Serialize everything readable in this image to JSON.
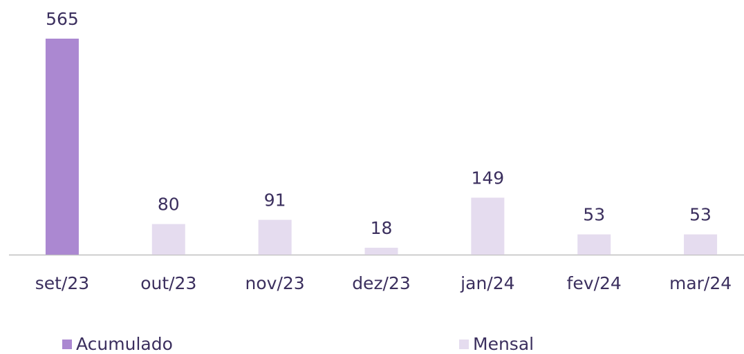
{
  "chart_data": {
    "type": "bar",
    "categories": [
      "set/23",
      "out/23",
      "nov/23",
      "dez/23",
      "jan/24",
      "fev/24",
      "mar/24"
    ],
    "series": [
      {
        "name": "Acumulado",
        "color": "#ab88d1",
        "values": [
          565,
          null,
          null,
          null,
          null,
          null,
          null
        ]
      },
      {
        "name": "Mensal",
        "color": "#e5dcef",
        "values": [
          null,
          80,
          91,
          18,
          149,
          53,
          53
        ]
      }
    ],
    "legend": "bottom"
  }
}
